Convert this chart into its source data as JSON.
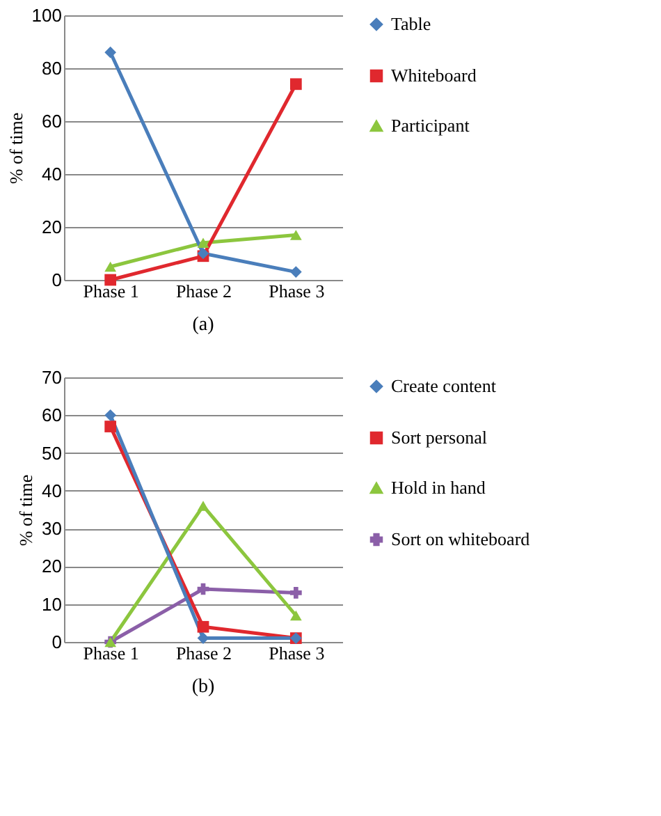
{
  "chart_data": [
    {
      "type": "line",
      "categories": [
        "Phase 1",
        "Phase 2",
        "Phase 3"
      ],
      "ylabel": "% of time",
      "ylim": [
        0,
        100
      ],
      "yticks": [
        0,
        20,
        40,
        60,
        80,
        100
      ],
      "grid": "y",
      "legend": "right",
      "annotations": [
        "(a)"
      ],
      "series": [
        {
          "name": "Table",
          "color": "#4a7ebb",
          "marker": "diamond",
          "values": [
            86,
            10,
            3
          ]
        },
        {
          "name": "Whiteboard",
          "color": "#e0282e",
          "marker": "square",
          "values": [
            0,
            9,
            74
          ]
        },
        {
          "name": "Participant",
          "color": "#8cc63e",
          "marker": "triangle",
          "values": [
            5,
            14,
            17
          ]
        }
      ]
    },
    {
      "type": "line",
      "categories": [
        "Phase 1",
        "Phase 2",
        "Phase 3"
      ],
      "ylabel": "% of time",
      "ylim": [
        0,
        70
      ],
      "yticks": [
        0,
        10,
        20,
        30,
        40,
        50,
        60,
        70
      ],
      "grid": "y",
      "legend": "right",
      "annotations": [
        "(b)"
      ],
      "series": [
        {
          "name": "Create content",
          "color": "#4a7ebb",
          "marker": "diamond",
          "values": [
            60,
            1,
            1
          ]
        },
        {
          "name": "Sort personal",
          "color": "#e0282e",
          "marker": "square",
          "values": [
            57,
            4,
            1
          ]
        },
        {
          "name": "Hold in hand",
          "color": "#8cc63e",
          "marker": "triangle",
          "values": [
            0,
            36,
            7
          ]
        },
        {
          "name": "Sort on whiteboard",
          "color": "#8b5fa8",
          "marker": "cross",
          "values": [
            0,
            14,
            13
          ]
        }
      ]
    }
  ]
}
